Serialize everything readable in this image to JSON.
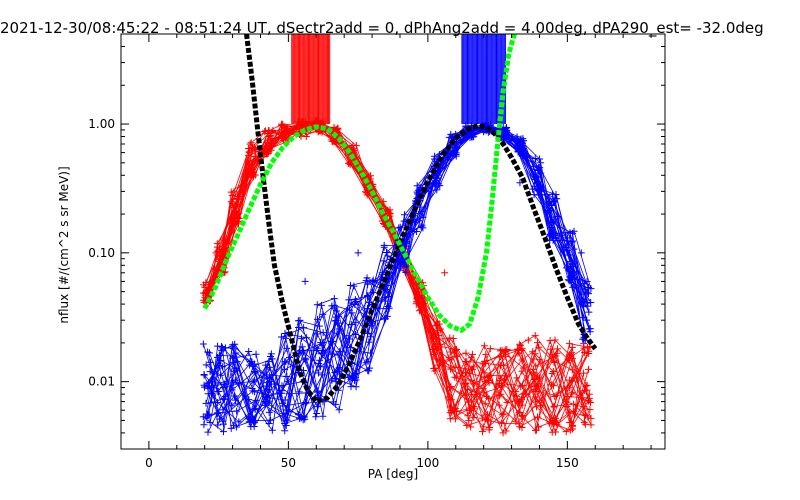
{
  "chart_data": {
    "type": "scatter",
    "title": "2021-12-30/08:45:22 - 08:51:24 UT, dSectr2add = 0, dPhAng2add = 4.00deg, dPA290_est= -32.0deg",
    "xlabel": "PA [deg]",
    "ylabel": "nflux [#/(cm^2 s sr MeV)]",
    "xlim": [
      -10,
      185
    ],
    "ylim": [
      0.003,
      5.0
    ],
    "yscale": "log",
    "xticks": [
      0,
      50,
      100,
      150
    ],
    "xtick_labels": [
      "0",
      "50",
      "100",
      "150"
    ],
    "yticks": [
      0.01,
      0.1,
      1.0
    ],
    "ytick_labels": [
      "0.01",
      "0.10",
      "1.00"
    ],
    "grid": false,
    "legend": "none",
    "colors": {
      "red": "#ff0000",
      "blue": "#0000ff",
      "black": "#000000",
      "green": "#00ff00"
    },
    "series": [
      {
        "color": "red",
        "style": "lines+plus",
        "x": [
          21,
          26,
          31,
          37,
          43,
          49,
          55,
          61,
          67,
          73,
          79,
          85,
          91,
          97,
          103,
          109,
          115,
          121,
          127,
          133,
          139,
          145,
          151,
          157
        ],
        "peak_bundle": {
          "y_min": [
            0.04,
            0.07,
            0.16,
            0.38,
            0.58,
            0.72,
            0.8,
            0.86,
            0.72,
            0.48,
            0.28,
            0.16,
            0.08,
            0.035,
            0.012,
            0.005,
            0.004,
            0.004,
            0.004,
            0.004,
            0.004,
            0.004,
            0.004,
            0.004
          ],
          "y_max": [
            0.06,
            0.12,
            0.3,
            0.75,
            0.9,
            1.0,
            1.05,
            1.1,
            0.95,
            0.7,
            0.4,
            0.22,
            0.12,
            0.06,
            0.03,
            0.025,
            0.02,
            0.02,
            0.018,
            0.02,
            0.025,
            0.025,
            0.02,
            0.02
          ]
        },
        "extra_points": [
          [
            24,
            0.1
          ],
          [
            84,
            0.25
          ],
          [
            106,
            0.07
          ],
          [
            136,
            0.021
          ],
          [
            138,
            0.015
          ]
        ],
        "tick_marks_x": [
          52,
          54,
          56,
          58,
          60,
          62,
          64
        ]
      },
      {
        "color": "blue",
        "style": "lines+plus",
        "x": [
          21,
          26,
          31,
          37,
          43,
          49,
          55,
          61,
          67,
          73,
          79,
          85,
          91,
          97,
          103,
          109,
          115,
          121,
          127,
          133,
          139,
          145,
          151,
          157
        ],
        "peak_bundle": {
          "y_min": [
            0.004,
            0.004,
            0.004,
            0.004,
            0.004,
            0.004,
            0.005,
            0.005,
            0.005,
            0.008,
            0.012,
            0.03,
            0.07,
            0.14,
            0.3,
            0.55,
            0.78,
            0.86,
            0.78,
            0.55,
            0.28,
            0.12,
            0.05,
            0.02
          ],
          "y_max": [
            0.02,
            0.02,
            0.02,
            0.018,
            0.02,
            0.025,
            0.03,
            0.04,
            0.05,
            0.06,
            0.07,
            0.12,
            0.2,
            0.35,
            0.6,
            0.85,
            0.98,
            1.0,
            0.95,
            0.8,
            0.55,
            0.3,
            0.15,
            0.06
          ]
        },
        "extra_points": [
          [
            56,
            0.06
          ],
          [
            75,
            0.1
          ],
          [
            107,
            0.55
          ],
          [
            125,
            0.9
          ],
          [
            133,
            0.35
          ],
          [
            155,
            0.1
          ]
        ],
        "tick_marks_x": [
          113,
          115,
          117,
          119,
          121,
          123,
          125,
          127
        ]
      },
      {
        "color": "black",
        "style": "dashed",
        "dash_width": 5,
        "x": [
          35,
          37,
          39,
          41,
          43,
          45,
          48,
          51,
          54,
          57,
          60,
          64,
          68,
          72,
          76,
          80,
          85,
          90,
          95,
          100,
          105,
          110,
          115,
          118,
          121,
          124,
          127,
          130,
          134,
          138,
          142,
          146,
          150,
          154,
          157,
          160
        ],
        "y": [
          5.0,
          2.2,
          0.9,
          0.38,
          0.17,
          0.08,
          0.04,
          0.022,
          0.012,
          0.0085,
          0.007,
          0.0075,
          0.0095,
          0.014,
          0.022,
          0.036,
          0.065,
          0.12,
          0.21,
          0.36,
          0.56,
          0.78,
          0.93,
          0.97,
          0.94,
          0.84,
          0.7,
          0.55,
          0.38,
          0.22,
          0.13,
          0.075,
          0.045,
          0.028,
          0.022,
          0.018
        ]
      },
      {
        "color": "green",
        "style": "dashed",
        "dash_width": 5,
        "x": [
          20,
          24,
          28,
          32,
          36,
          40,
          44,
          48,
          52,
          56,
          60,
          64,
          68,
          72,
          76,
          80,
          84,
          88,
          92,
          96,
          100,
          104,
          108,
          112,
          115,
          118,
          121,
          123,
          125,
          127,
          129,
          131
        ],
        "y": [
          0.037,
          0.055,
          0.09,
          0.14,
          0.22,
          0.34,
          0.5,
          0.66,
          0.8,
          0.9,
          0.95,
          0.92,
          0.78,
          0.6,
          0.43,
          0.3,
          0.2,
          0.14,
          0.095,
          0.065,
          0.045,
          0.033,
          0.027,
          0.025,
          0.028,
          0.045,
          0.1,
          0.25,
          0.7,
          1.8,
          3.5,
          5.0
        ]
      }
    ]
  }
}
